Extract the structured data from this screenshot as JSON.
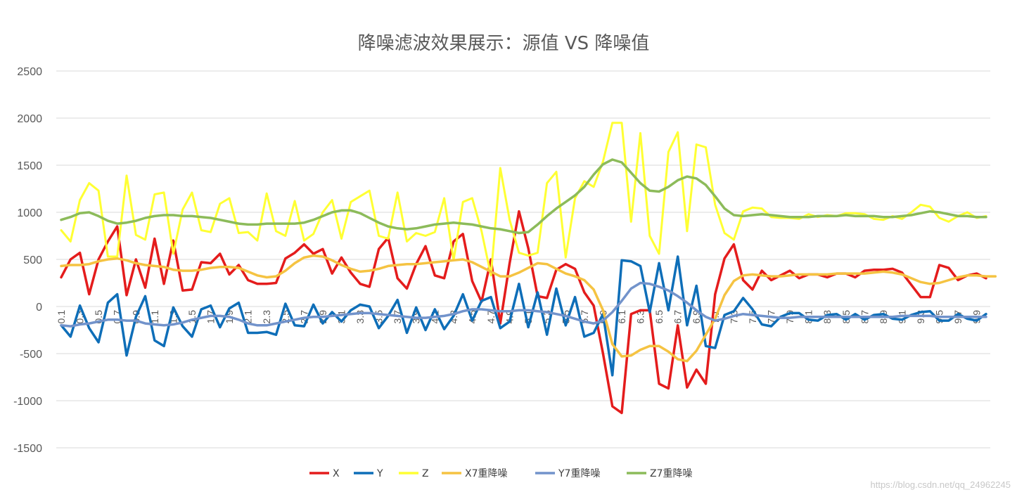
{
  "watermark": "https://blog.csdn.net/qq_24962245",
  "chart_data": {
    "type": "line",
    "title": "降噪滤波效果展示：源值 VS 降噪值",
    "xlabel": "",
    "ylabel": "",
    "ylim": [
      -1500,
      2500
    ],
    "yticks": [
      2500,
      2000,
      1500,
      1000,
      500,
      0,
      -500,
      -1000,
      -1500
    ],
    "grid": true,
    "legend_position": "bottom",
    "xtick_labels": [
      "0.1",
      "0.3",
      "0.5",
      "0.7",
      "0.9",
      "1.1",
      "1.3",
      "1.5",
      "1.7",
      "1.9",
      "2.1",
      "2.3",
      "2.5",
      "2.7",
      "2.9",
      "3.1",
      "3.3",
      "3.5",
      "3.7",
      "3.9",
      "4.1",
      "4.3",
      "4.5",
      "4.7",
      "4.9",
      "5.1",
      "5.3",
      "5.5",
      "5.7",
      "5.9",
      "6.1",
      "6.3",
      "6.5",
      "6.7",
      "6.9",
      "7.1",
      "7.3",
      "7.5",
      "7.7",
      "7.9",
      "8.1",
      "8.3",
      "8.5",
      "8.7",
      "8.9",
      "9.1",
      "9.3",
      "9.5",
      "9.7",
      "9.9"
    ],
    "x_start": 0.1,
    "x_step": 0.1,
    "series": [
      {
        "name": "X",
        "color": "#e41c1c",
        "width": 3.5,
        "values": [
          310,
          500,
          570,
          130,
          500,
          690,
          850,
          120,
          500,
          200,
          720,
          240,
          700,
          170,
          180,
          470,
          460,
          560,
          340,
          440,
          280,
          240,
          240,
          250,
          510,
          570,
          660,
          560,
          610,
          350,
          520,
          360,
          240,
          210,
          610,
          730,
          300,
          190,
          450,
          640,
          330,
          300,
          690,
          770,
          270,
          50,
          500,
          -180,
          460,
          1010,
          620,
          110,
          90,
          390,
          450,
          400,
          150,
          10,
          -500,
          -1060,
          -1130,
          -80,
          -40,
          -40,
          -820,
          -870,
          -200,
          -860,
          -670,
          -820,
          130,
          510,
          660,
          280,
          180,
          380,
          280,
          330,
          380,
          300,
          340,
          340,
          310,
          350,
          350,
          310,
          380,
          390,
          390,
          400,
          360,
          230,
          100,
          100,
          440,
          410,
          280,
          330,
          350,
          300
        ]
      },
      {
        "name": "Y",
        "color": "#0e6eb8",
        "width": 3.5,
        "values": [
          -200,
          -320,
          10,
          -230,
          -380,
          40,
          130,
          -520,
          -110,
          110,
          -360,
          -420,
          -10,
          -210,
          -320,
          -30,
          10,
          -220,
          -20,
          40,
          -280,
          -280,
          -270,
          -300,
          30,
          -200,
          -210,
          20,
          -180,
          -60,
          -160,
          -40,
          20,
          0,
          -230,
          -100,
          70,
          -280,
          -10,
          -250,
          -30,
          -240,
          -100,
          130,
          -150,
          60,
          100,
          -230,
          -160,
          240,
          -220,
          150,
          -300,
          190,
          -200,
          100,
          -320,
          -280,
          -80,
          -730,
          490,
          480,
          430,
          -60,
          460,
          -40,
          530,
          -200,
          220,
          -420,
          -440,
          -90,
          -50,
          90,
          -30,
          -190,
          -210,
          -110,
          -70,
          -70,
          -140,
          -150,
          -90,
          -80,
          -140,
          -80,
          -140,
          -90,
          -80,
          -130,
          -140,
          -90,
          -60,
          -50,
          -150,
          -150,
          -80,
          -130,
          -150,
          -80
        ]
      },
      {
        "name": "Z",
        "color": "#ffff33",
        "width": 3,
        "values": [
          810,
          690,
          1130,
          1310,
          1230,
          530,
          530,
          1390,
          760,
          710,
          1190,
          1210,
          560,
          1030,
          1210,
          810,
          790,
          1090,
          1150,
          780,
          790,
          700,
          1200,
          800,
          750,
          1120,
          700,
          770,
          1000,
          1130,
          720,
          1110,
          1170,
          1230,
          750,
          720,
          1210,
          690,
          780,
          750,
          790,
          1150,
          490,
          1110,
          1150,
          800,
          330,
          1470,
          920,
          570,
          540,
          570,
          1310,
          1430,
          520,
          1150,
          1330,
          1270,
          1540,
          1950,
          1950,
          900,
          1840,
          750,
          560,
          1640,
          1850,
          800,
          1720,
          1690,
          1080,
          780,
          710,
          1010,
          1050,
          1040,
          950,
          940,
          940,
          930,
          980,
          950,
          970,
          960,
          990,
          990,
          980,
          930,
          920,
          960,
          930,
          1000,
          1080,
          1060,
          940,
          900,
          960,
          1000,
          940,
          960
        ]
      },
      {
        "name": "X7重降噪",
        "color": "#f5c342",
        "width": 3.5,
        "values": [
          430,
          440,
          440,
          450,
          480,
          500,
          510,
          490,
          460,
          440,
          430,
          420,
          390,
          380,
          380,
          390,
          410,
          420,
          420,
          410,
          370,
          330,
          310,
          320,
          380,
          460,
          520,
          540,
          530,
          490,
          440,
          400,
          370,
          380,
          400,
          430,
          440,
          450,
          450,
          460,
          470,
          480,
          490,
          500,
          470,
          420,
          370,
          320,
          320,
          360,
          410,
          460,
          450,
          400,
          350,
          320,
          280,
          180,
          -40,
          -400,
          -530,
          -520,
          -460,
          -420,
          -420,
          -480,
          -560,
          -580,
          -470,
          -300,
          -130,
          120,
          270,
          330,
          340,
          330,
          320,
          320,
          330,
          340,
          340,
          340,
          340,
          350,
          350,
          350,
          350,
          360,
          370,
          360,
          340,
          300,
          260,
          240,
          250,
          280,
          310,
          330,
          330,
          320,
          320
        ]
      },
      {
        "name": "Y7重降噪",
        "color": "#7293cb",
        "width": 3.5,
        "values": [
          -200,
          -210,
          -190,
          -180,
          -160,
          -140,
          -140,
          -150,
          -150,
          -180,
          -190,
          -200,
          -190,
          -170,
          -140,
          -120,
          -100,
          -100,
          -110,
          -140,
          -180,
          -200,
          -200,
          -180,
          -160,
          -140,
          -120,
          -110,
          -110,
          -100,
          -90,
          -80,
          -70,
          -70,
          -80,
          -90,
          -100,
          -110,
          -120,
          -120,
          -110,
          -100,
          -80,
          -50,
          -30,
          -30,
          -40,
          -50,
          -50,
          -40,
          -40,
          -50,
          -60,
          -80,
          -100,
          -130,
          -160,
          -180,
          -150,
          -60,
          60,
          190,
          250,
          240,
          210,
          170,
          110,
          40,
          -40,
          -110,
          -150,
          -130,
          -100,
          -80,
          -90,
          -100,
          -110,
          -120,
          -120,
          -110,
          -110,
          -110,
          -110,
          -110,
          -110,
          -110,
          -110,
          -110,
          -110,
          -110,
          -100,
          -100,
          -100,
          -100,
          -110,
          -110,
          -110,
          -110,
          -110,
          -110
        ]
      },
      {
        "name": "Z7重降噪",
        "color": "#8cbb5a",
        "width": 3.5,
        "values": [
          920,
          950,
          990,
          1000,
          960,
          910,
          880,
          890,
          910,
          940,
          960,
          970,
          970,
          960,
          960,
          950,
          940,
          920,
          900,
          880,
          870,
          870,
          880,
          880,
          880,
          880,
          890,
          920,
          960,
          1000,
          1020,
          1020,
          990,
          940,
          890,
          850,
          830,
          820,
          830,
          850,
          870,
          880,
          890,
          880,
          870,
          850,
          830,
          820,
          800,
          780,
          790,
          870,
          960,
          1040,
          1110,
          1180,
          1270,
          1400,
          1510,
          1560,
          1530,
          1420,
          1310,
          1230,
          1220,
          1270,
          1340,
          1380,
          1360,
          1290,
          1170,
          1040,
          970,
          960,
          970,
          980,
          970,
          960,
          950,
          950,
          950,
          960,
          960,
          960,
          970,
          960,
          960,
          960,
          950,
          950,
          960,
          970,
          990,
          1010,
          1000,
          980,
          960,
          960,
          950,
          950
        ]
      }
    ]
  }
}
